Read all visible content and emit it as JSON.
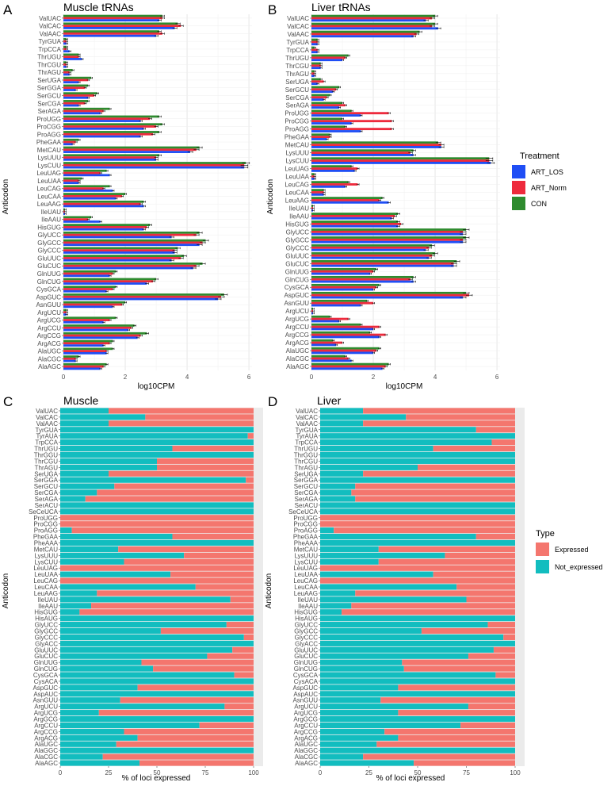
{
  "colors": {
    "ART_LOS": "#1f4ef5",
    "ART_Norm": "#ee2a3c",
    "CON": "#2e8b2e",
    "Expressed": "#f4766e",
    "Not_expressed": "#12bdbf"
  },
  "legend_top": {
    "title": "Treatment",
    "items": [
      "ART_LOS",
      "ART_Norm",
      "CON"
    ]
  },
  "legend_bottom": {
    "title": "Type",
    "items": [
      "Expressed",
      "Not_expressed"
    ]
  },
  "chart_data": [
    {
      "panel": "A",
      "type": "bar",
      "orientation": "horizontal",
      "title": "Muscle tRNAs",
      "xlabel": "log10CPM",
      "ylabel": "Anticodon",
      "xlim": [
        0,
        6.1
      ],
      "xticks": [
        0,
        2,
        4,
        6
      ],
      "grid": true,
      "categories": [
        "ValUAC",
        "ValCAC",
        "ValAAC",
        "TyrGUA",
        "TrpCCA",
        "ThrUGU",
        "ThrCGU",
        "ThrAGU",
        "SerUGA",
        "SerGGA",
        "SerGCU",
        "SerCGA",
        "SerAGA",
        "ProUGG",
        "ProCGG",
        "ProAGG",
        "PheGAA",
        "MetCAU",
        "LysUUU",
        "LysCUU",
        "LeuUAG",
        "LeuUAA",
        "LeuCAG",
        "LeuCAA",
        "LeuAAG",
        "IleUAU",
        "IleAAU",
        "HisGUG",
        "GlyUCC",
        "GlyGCC",
        "GlyCCC",
        "GluUUC",
        "GluCUC",
        "GlnUUG",
        "GlnCUG",
        "CysGCA",
        "AspGUC",
        "AsnGUU",
        "ArgUCU",
        "ArgUCG",
        "ArgCCU",
        "ArgCCG",
        "ArgACG",
        "AlaUGC",
        "AlaCGC",
        "AlaAGC"
      ],
      "series": [
        {
          "name": "CON",
          "values": [
            3.2,
            3.7,
            3.1,
            0.1,
            0.1,
            0.5,
            0.1,
            0.3,
            0.9,
            0.8,
            1.1,
            0.8,
            1.5,
            3.1,
            3.2,
            3.1,
            0.5,
            4.4,
            3.1,
            5.9,
            1.4,
            0.6,
            1.5,
            2.0,
            2.6,
            0.05,
            0.9,
            2.8,
            4.4,
            4.6,
            3.7,
            3.9,
            4.5,
            1.7,
            3.0,
            1.7,
            5.2,
            2.0,
            0.1,
            1.7,
            2.3,
            2.7,
            1.6,
            1.6,
            0.5,
            1.4
          ]
        },
        {
          "name": "ART_Norm",
          "values": [
            3.2,
            3.8,
            3.2,
            0.1,
            0.1,
            0.5,
            0.1,
            0.2,
            0.8,
            0.7,
            1.0,
            0.7,
            1.3,
            2.8,
            3.0,
            2.9,
            0.4,
            4.3,
            3.0,
            5.85,
            1.2,
            0.5,
            1.3,
            1.9,
            2.5,
            0.05,
            0.8,
            2.7,
            4.3,
            4.5,
            3.6,
            3.8,
            4.3,
            1.6,
            2.9,
            1.6,
            5.1,
            1.9,
            0.1,
            1.5,
            2.2,
            2.5,
            1.5,
            1.4,
            0.4,
            1.3
          ]
        },
        {
          "name": "ART_LOS",
          "values": [
            3.1,
            3.6,
            3.0,
            0.1,
            0.2,
            0.6,
            0.1,
            0.2,
            0.5,
            0.4,
            0.8,
            0.5,
            1.2,
            2.5,
            2.6,
            2.5,
            0.3,
            4.1,
            3.0,
            5.85,
            1.5,
            0.5,
            1.6,
            1.7,
            2.6,
            0.05,
            1.2,
            2.6,
            3.5,
            4.4,
            3.6,
            3.5,
            4.2,
            1.5,
            2.7,
            1.4,
            5.0,
            1.6,
            0.1,
            1.3,
            2.1,
            2.4,
            1.3,
            1.4,
            0.4,
            1.2
          ]
        }
      ]
    },
    {
      "panel": "B",
      "type": "bar",
      "orientation": "horizontal",
      "title": "Liver tRNAs",
      "xlabel": "log10CPM",
      "ylabel": "Anticodon",
      "xlim": [
        0,
        6.1
      ],
      "xticks": [
        0,
        2,
        4,
        6
      ],
      "grid": true,
      "categories": [
        "ValUAC",
        "ValCAC",
        "ValAAC",
        "TyrGUA",
        "TrpCCA",
        "ThrUGU",
        "ThrCGU",
        "ThrAGU",
        "SerUGA",
        "SerGCU",
        "SerCGA",
        "SerAGA",
        "ProUGG",
        "ProCGG",
        "ProAGG",
        "PheGAA",
        "MetCAU",
        "LysUUU",
        "LysCUU",
        "LeuUAG",
        "LeuUAA",
        "LeuCAG",
        "LeuCAA",
        "LeuAAG",
        "IleUAU",
        "IleAAU",
        "HisGUG",
        "GlyUCC",
        "GlyGCC",
        "GlyCCC",
        "GluUUC",
        "GluCUC",
        "GlnUUG",
        "GlnCUG",
        "CysGCA",
        "AspGUC",
        "AsnGUU",
        "ArgUCU",
        "ArgUCG",
        "ArgCCU",
        "ArgCCG",
        "ArgACG",
        "AlaUGC",
        "AlaCGC",
        "AlaAGC"
      ],
      "series": [
        {
          "name": "CON",
          "values": [
            4.0,
            4.0,
            3.5,
            0.2,
            0.1,
            1.2,
            0.3,
            0.1,
            0.3,
            0.9,
            0.6,
            1.0,
            1.3,
            1.0,
            1.1,
            0.6,
            4.1,
            3.3,
            5.75,
            1.3,
            0.1,
            1.2,
            0.4,
            2.3,
            0.05,
            2.8,
            2.8,
            5.0,
            5.0,
            3.9,
            4.0,
            4.7,
            2.1,
            3.3,
            2.2,
            5.0,
            1.8,
            0.05,
            0.6,
            1.6,
            1.9,
            0.7,
            2.2,
            1.1,
            2.5
          ]
        },
        {
          "name": "ART_Norm",
          "values": [
            3.9,
            3.9,
            3.4,
            0.2,
            0.2,
            1.1,
            0.3,
            0.1,
            0.4,
            0.8,
            0.5,
            1.1,
            2.5,
            2.6,
            2.6,
            0.6,
            4.2,
            3.2,
            5.75,
            1.5,
            0.1,
            1.5,
            0.4,
            2.2,
            0.05,
            2.7,
            2.9,
            4.9,
            4.9,
            3.8,
            3.9,
            4.6,
            2.0,
            3.2,
            2.1,
            5.1,
            2.0,
            0.05,
            1.2,
            2.2,
            2.4,
            1.0,
            2.1,
            1.2,
            2.4
          ]
        },
        {
          "name": "ART_LOS",
          "values": [
            3.7,
            4.1,
            3.3,
            0.2,
            0.2,
            1.0,
            0.3,
            0.1,
            0.2,
            0.7,
            0.4,
            0.9,
            1.6,
            1.3,
            1.6,
            0.5,
            4.2,
            3.3,
            5.8,
            1.4,
            0.1,
            1.1,
            0.4,
            2.5,
            0.05,
            2.6,
            2.8,
            4.9,
            4.9,
            3.7,
            3.8,
            4.6,
            1.9,
            3.3,
            2.0,
            4.9,
            1.6,
            0.05,
            0.9,
            2.0,
            2.2,
            0.8,
            2.0,
            1.3,
            2.3
          ]
        }
      ]
    },
    {
      "panel": "C",
      "type": "bar",
      "orientation": "horizontal",
      "stacked": true,
      "title": "Muscle",
      "xlabel": "% of loci expressed",
      "ylabel": "Anticodon",
      "xlim": [
        0,
        100
      ],
      "xticks": [
        0,
        25,
        50,
        75,
        100
      ],
      "categories": [
        "ValUAC",
        "ValCAC",
        "ValAAC",
        "TyrGUA",
        "TyrAUA",
        "TrpCCA",
        "ThrUGU",
        "ThrGGU",
        "ThrCGU",
        "ThrAGU",
        "SerUGA",
        "SerGGA",
        "SerGCU",
        "SerCGA",
        "SerAGA",
        "SerACU",
        "SeCeUCA",
        "ProUGG",
        "ProCGG",
        "ProAGG",
        "PheGAA",
        "PheAAA",
        "MetCAU",
        "LysUUU",
        "LysCUU",
        "LeuUAG",
        "LeuUAA",
        "LeuCAG",
        "LeuCAA",
        "LeuAAG",
        "IleUAU",
        "IleAAU",
        "HisGUG",
        "HisAUG",
        "GlyUCC",
        "GlyGCC",
        "GlyCCC",
        "GlyACC",
        "GluUUC",
        "GluCUC",
        "GlnUUG",
        "GlnCUG",
        "CysGCA",
        "CysACA",
        "AspGUC",
        "AspAUC",
        "AsnGUU",
        "ArgUCU",
        "ArgUCG",
        "ArgGCG",
        "ArgCCU",
        "ArgCCG",
        "ArgACG",
        "AlaUGC",
        "AlaGGC",
        "AlaCGC",
        "AlaAGC"
      ],
      "series": [
        {
          "name": "Not_expressed",
          "values": [
            25,
            44,
            25,
            100,
            97,
            100,
            58,
            100,
            50,
            50,
            25,
            96,
            28,
            19,
            13,
            100,
            100,
            0,
            0,
            6,
            58,
            100,
            30,
            64,
            33,
            0,
            57,
            0,
            70,
            19,
            88,
            16,
            10,
            100,
            86,
            52,
            95,
            100,
            89,
            76,
            42,
            48,
            90,
            100,
            40,
            100,
            31,
            85,
            20,
            100,
            72,
            33,
            40,
            29,
            100,
            22,
            41
          ]
        },
        {
          "name": "Expressed",
          "values": [
            75,
            56,
            75,
            0,
            3,
            0,
            42,
            0,
            50,
            50,
            75,
            4,
            72,
            81,
            87,
            0,
            0,
            100,
            100,
            94,
            42,
            0,
            70,
            36,
            67,
            100,
            43,
            100,
            30,
            81,
            12,
            84,
            90,
            0,
            14,
            48,
            5,
            0,
            11,
            24,
            58,
            52,
            10,
            0,
            60,
            0,
            69,
            15,
            80,
            0,
            28,
            67,
            60,
            71,
            0,
            78,
            59
          ]
        }
      ]
    },
    {
      "panel": "D",
      "type": "bar",
      "orientation": "horizontal",
      "stacked": true,
      "title": "Liver",
      "xlabel": "% of loci expressed",
      "ylabel": "Anticodon",
      "xlim": [
        0,
        100
      ],
      "xticks": [
        0,
        25,
        50,
        75,
        100
      ],
      "categories": [
        "ValUAC",
        "ValCAC",
        "ValAAC",
        "TyrGUA",
        "TyrAUA",
        "TrpCCA",
        "ThrUGU",
        "ThrGGU",
        "ThrCGU",
        "ThrAGU",
        "SerUGA",
        "SerGGA",
        "SerGCU",
        "SerCGA",
        "SerAGA",
        "SerACU",
        "SeCeUCA",
        "ProUGG",
        "ProCGG",
        "ProAGG",
        "PheGAA",
        "PheAAA",
        "MetCAU",
        "LysUUU",
        "LysCUU",
        "LeuUAG",
        "LeuUAA",
        "LeuCAG",
        "LeuCAA",
        "LeuAAG",
        "IleUAU",
        "IleAAU",
        "HisGUG",
        "HisAUG",
        "GlyUCC",
        "GlyGCC",
        "GlyCCC",
        "GlyACC",
        "GluUUC",
        "GluCUC",
        "GlnUUG",
        "GlnCUG",
        "CysGCA",
        "CysACA",
        "AspGUC",
        "AspAUC",
        "AsnGUU",
        "ArgUCU",
        "ArgUCG",
        "ArgGCG",
        "ArgCCU",
        "ArgCCG",
        "ArgACG",
        "AlaUGC",
        "AlaGGC",
        "AlaCGC",
        "AlaAGC"
      ],
      "series": [
        {
          "name": "Not_expressed",
          "values": [
            22,
            44,
            22,
            80,
            100,
            88,
            58,
            100,
            100,
            50,
            22,
            100,
            18,
            16,
            18,
            100,
            100,
            0,
            0,
            7,
            80,
            100,
            30,
            64,
            30,
            0,
            58,
            0,
            70,
            18,
            75,
            16,
            11,
            100,
            86,
            52,
            94,
            100,
            89,
            76,
            42,
            43,
            90,
            100,
            40,
            100,
            31,
            76,
            40,
            100,
            72,
            33,
            40,
            29,
            100,
            22,
            48
          ]
        },
        {
          "name": "Expressed",
          "values": [
            78,
            56,
            78,
            20,
            0,
            12,
            42,
            0,
            0,
            50,
            78,
            0,
            82,
            84,
            82,
            0,
            0,
            100,
            100,
            93,
            20,
            0,
            70,
            36,
            70,
            100,
            42,
            100,
            30,
            82,
            25,
            84,
            89,
            0,
            14,
            48,
            6,
            0,
            11,
            24,
            58,
            57,
            10,
            0,
            60,
            0,
            69,
            24,
            60,
            0,
            28,
            67,
            60,
            71,
            0,
            78,
            52
          ]
        }
      ]
    }
  ],
  "panel_letters": [
    "A",
    "B",
    "C",
    "D"
  ]
}
